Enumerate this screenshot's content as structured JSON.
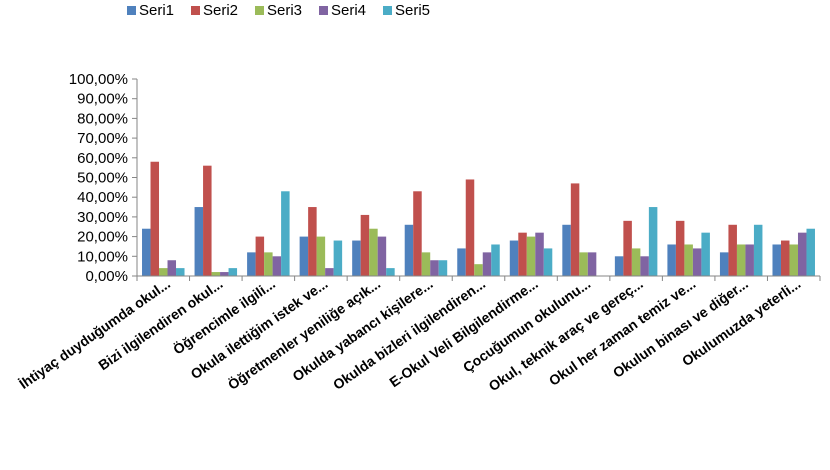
{
  "chart_data": {
    "type": "bar",
    "categories": [
      "İhtiyaç duyduğumda okul...",
      "Bizi ilgilendiren okul...",
      "Öğrencimle ilgili...",
      "Okula ilettiğim istek ve...",
      "Öğretmenler yeniliğe açık...",
      "Okulda yabancı kişilere...",
      "Okulda bizleri ilgilendiren...",
      "E-Okul Veli Bilgilendirme...",
      "Çocuğumun okulunu...",
      "Okul, teknik araç ve gereç...",
      "Okul her zaman temiz ve...",
      "Okulun binası ve diğer...",
      "Okulumuzda yeterli..."
    ],
    "series": [
      {
        "name": "Seri1",
        "color": "#4F81BD",
        "values": [
          24,
          35,
          12,
          20,
          18,
          26,
          14,
          18,
          26,
          10,
          16,
          12,
          16
        ]
      },
      {
        "name": "Seri2",
        "color": "#C0504D",
        "values": [
          58,
          56,
          20,
          35,
          31,
          43,
          49,
          22,
          47,
          28,
          28,
          26,
          18
        ]
      },
      {
        "name": "Seri3",
        "color": "#9BBB59",
        "values": [
          4,
          2,
          12,
          20,
          24,
          12,
          6,
          20,
          12,
          14,
          16,
          16,
          16
        ]
      },
      {
        "name": "Seri4",
        "color": "#8064A2",
        "values": [
          8,
          2,
          10,
          4,
          20,
          8,
          12,
          22,
          12,
          10,
          14,
          16,
          22
        ]
      },
      {
        "name": "Seri5",
        "color": "#4BACC6",
        "values": [
          4,
          4,
          43,
          18,
          4,
          8,
          16,
          14,
          0,
          35,
          22,
          26,
          24
        ]
      }
    ],
    "yticks": [
      "0,00%",
      "10,00%",
      "20,00%",
      "30,00%",
      "40,00%",
      "50,00%",
      "60,00%",
      "70,00%",
      "80,00%",
      "90,00%",
      "100,00%"
    ],
    "ylim": [
      0,
      100
    ],
    "grid": false,
    "legend_position": "top-left"
  }
}
